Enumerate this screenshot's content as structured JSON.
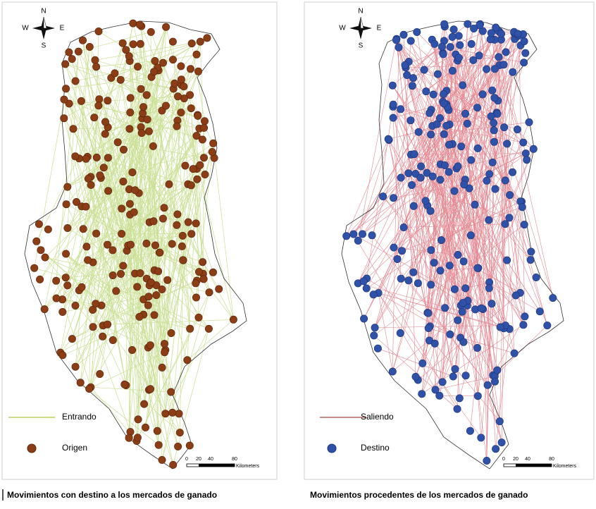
{
  "panels": [
    {
      "compass": {
        "n": "N",
        "s": "S",
        "e": "E",
        "w": "W"
      },
      "legend": [
        {
          "label": "Entrando"
        },
        {
          "label": "Origen"
        }
      ],
      "scale": {
        "ticks": [
          "0",
          "20",
          "40",
          "80"
        ],
        "unit": "Kilometers"
      },
      "caption": "Movimientos con destino a los mercados de ganado"
    },
    {
      "compass": {
        "n": "N",
        "s": "S",
        "e": "E",
        "w": "W"
      },
      "legend": [
        {
          "label": "Saliendo"
        },
        {
          "label": "Destino"
        }
      ],
      "scale": {
        "ticks": [
          "0",
          "20",
          "40",
          "80"
        ],
        "unit": "Kilometers"
      },
      "caption": "Movimientos procedentes de los mercados de ganado"
    }
  ]
}
